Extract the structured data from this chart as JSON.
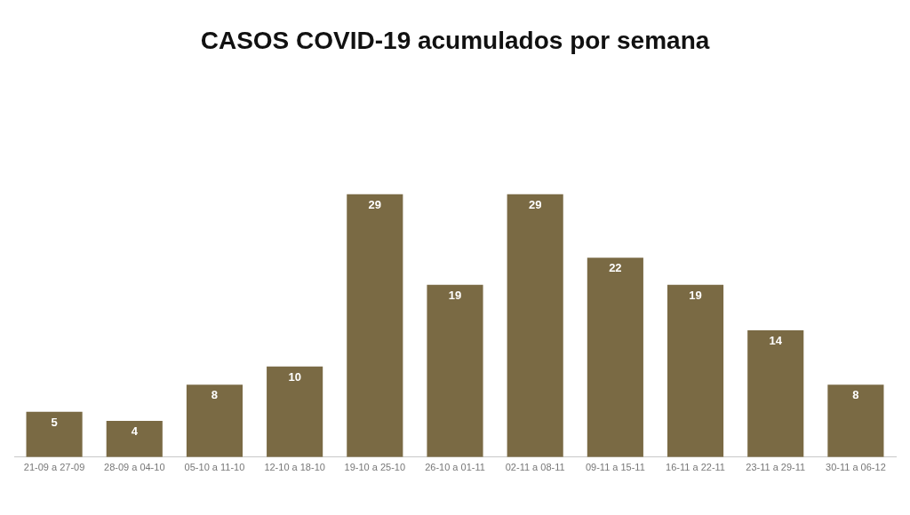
{
  "chart_data": {
    "type": "bar",
    "title": "CASOS COVID-19 acumulados por semana",
    "categories": [
      "21-09 a 27-09",
      "28-09 a 04-10",
      "05-10 a 11-10",
      "12-10 a 18-10",
      "19-10 a 25-10",
      "26-10 a 01-11",
      "02-11 a 08-11",
      "09-11 a 15-11",
      "16-11 a 22-11",
      "23-11 a 29-11",
      "30-11 a 06-12"
    ],
    "values": [
      5,
      4,
      8,
      10,
      29,
      19,
      29,
      22,
      19,
      14,
      8
    ],
    "color": "#7a6a44",
    "data_labels": true,
    "grid": false,
    "legend": false,
    "tick_labels": "x"
  }
}
